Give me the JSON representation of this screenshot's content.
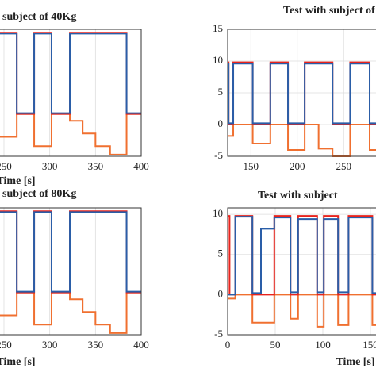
{
  "chart_data": [
    {
      "type": "line",
      "title": "subject of 40Kg",
      "xlabel": "Time [s]",
      "xlim": [
        240,
        400
      ],
      "xticks": [
        250,
        300,
        350,
        400
      ],
      "ylim": [
        -5,
        10
      ],
      "grid": true,
      "x": [
        240,
        264,
        264,
        283,
        283,
        302,
        302,
        322,
        322,
        336,
        336,
        350,
        350,
        366,
        366,
        384,
        384,
        400
      ],
      "series": [
        {
          "color": "#f07030",
          "values": [
            -2.7,
            -2.7,
            0,
            0,
            -3.8,
            -3.8,
            0,
            0,
            -0.8,
            -0.8,
            -2.3,
            -2.3,
            -3.8,
            -3.8,
            -4.8,
            -4.8,
            0,
            0
          ]
        },
        {
          "color": "#e8231c",
          "values": [
            9.6,
            9.6,
            0,
            0,
            9.6,
            9.6,
            0,
            0,
            9.6,
            9.6,
            9.6,
            9.6,
            9.6,
            9.6,
            9.6,
            9.6,
            0,
            0
          ]
        },
        {
          "color": "#2a5ea8",
          "values": [
            9.5,
            9.5,
            0.1,
            0.1,
            9.5,
            9.5,
            0.1,
            0.1,
            9.5,
            9.5,
            9.5,
            9.5,
            9.5,
            9.5,
            9.5,
            9.5,
            0.1,
            0.1
          ]
        }
      ]
    },
    {
      "type": "line",
      "title": "Test with subject of",
      "xlim": [
        125,
        300
      ],
      "xticks": [
        150,
        200,
        250
      ],
      "ylim": [
        -5,
        15
      ],
      "yticks": [
        -5,
        0,
        5,
        10,
        15
      ],
      "grid": true,
      "x": [
        125,
        126,
        126,
        131,
        131,
        152,
        152,
        171,
        171,
        190,
        190,
        208,
        208,
        223,
        223,
        238,
        238,
        257,
        257,
        278,
        278,
        300
      ],
      "series": [
        {
          "color": "#f07030",
          "values": [
            -1.8,
            -1.8,
            -1.8,
            -1.8,
            0,
            0,
            -3,
            -3,
            0,
            0,
            -4,
            -4,
            0,
            0,
            -3.8,
            -3.8,
            -5,
            -5,
            0,
            0,
            -4,
            -4
          ]
        },
        {
          "color": "#e8231c",
          "values": [
            9.8,
            9.8,
            0,
            0,
            9.8,
            9.8,
            0,
            0,
            9.8,
            9.8,
            0,
            0,
            9.8,
            9.8,
            9.8,
            9.8,
            0,
            0,
            9.8,
            9.8,
            0,
            0
          ]
        },
        {
          "color": "#2a5ea8",
          "values": [
            9.6,
            9.6,
            0.2,
            0.2,
            9.6,
            9.6,
            0.2,
            0.2,
            9.6,
            9.6,
            0.2,
            0.2,
            9.6,
            9.6,
            9.6,
            9.6,
            0.2,
            0.2,
            9.6,
            9.6,
            0.2,
            0.2
          ]
        }
      ]
    },
    {
      "type": "line",
      "title": "subject of 80Kg",
      "xlabel": "Time [s]",
      "xlim": [
        240,
        400
      ],
      "xticks": [
        250,
        300,
        350,
        400
      ],
      "ylim": [
        -5,
        10
      ],
      "grid": true,
      "x": [
        240,
        264,
        264,
        283,
        283,
        302,
        302,
        322,
        322,
        336,
        336,
        350,
        350,
        366,
        366,
        384,
        384,
        400
      ],
      "series": [
        {
          "color": "#f07030",
          "values": [
            -2.7,
            -2.7,
            0,
            0,
            -3.8,
            -3.8,
            0,
            0,
            -0.8,
            -0.8,
            -2.3,
            -2.3,
            -3.8,
            -3.8,
            -4.8,
            -4.8,
            0,
            0
          ]
        },
        {
          "color": "#e8231c",
          "values": [
            9.6,
            9.6,
            0,
            0,
            9.6,
            9.6,
            0,
            0,
            9.6,
            9.6,
            9.6,
            9.6,
            9.6,
            9.6,
            9.6,
            9.6,
            0,
            0
          ]
        },
        {
          "color": "#2a5ea8",
          "values": [
            9.5,
            9.5,
            0.1,
            0.1,
            9.5,
            9.5,
            0.1,
            0.1,
            9.5,
            9.5,
            9.5,
            9.5,
            9.5,
            9.5,
            9.5,
            9.5,
            0.1,
            0.1
          ]
        }
      ]
    },
    {
      "type": "line",
      "title": "Test with subject",
      "xlabel": "Time [s]",
      "xlim": [
        0,
        160
      ],
      "xticks": [
        0,
        50,
        100,
        150
      ],
      "ylim": [
        -5,
        10.8
      ],
      "yticks": [
        -5,
        0,
        5,
        10
      ],
      "grid": true,
      "x": [
        0,
        2,
        2,
        8,
        8,
        26,
        26,
        35,
        35,
        49,
        49,
        66,
        66,
        74,
        74,
        94,
        94,
        101,
        101,
        116,
        116,
        127,
        127,
        152,
        152,
        160
      ],
      "series": [
        {
          "color": "#f07030",
          "values": [
            -0.5,
            -0.5,
            -0.5,
            -0.5,
            0,
            0,
            -3.5,
            -3.5,
            -3.5,
            -3.5,
            0,
            0,
            -3,
            -3,
            0,
            0,
            -4,
            -4,
            0,
            0,
            -3.8,
            -3.8,
            0,
            0,
            -3.8,
            -3.8
          ]
        },
        {
          "color": "#e8231c",
          "values": [
            9.8,
            9.8,
            0,
            0,
            9.8,
            9.8,
            0,
            0,
            0,
            0,
            9.8,
            9.8,
            0,
            0,
            9.8,
            9.8,
            0,
            0,
            9.8,
            9.8,
            0,
            0,
            9.8,
            9.8,
            0,
            0
          ]
        },
        {
          "color": "#2a5ea8",
          "values": [
            0,
            0,
            0,
            0,
            9.7,
            9.7,
            0.2,
            0.2,
            8.2,
            8.2,
            9.6,
            9.6,
            0.3,
            0.3,
            9.4,
            9.4,
            0.3,
            0.3,
            9.4,
            9.4,
            0.3,
            0.3,
            9.6,
            9.6,
            0.2,
            0.2
          ]
        }
      ]
    }
  ]
}
